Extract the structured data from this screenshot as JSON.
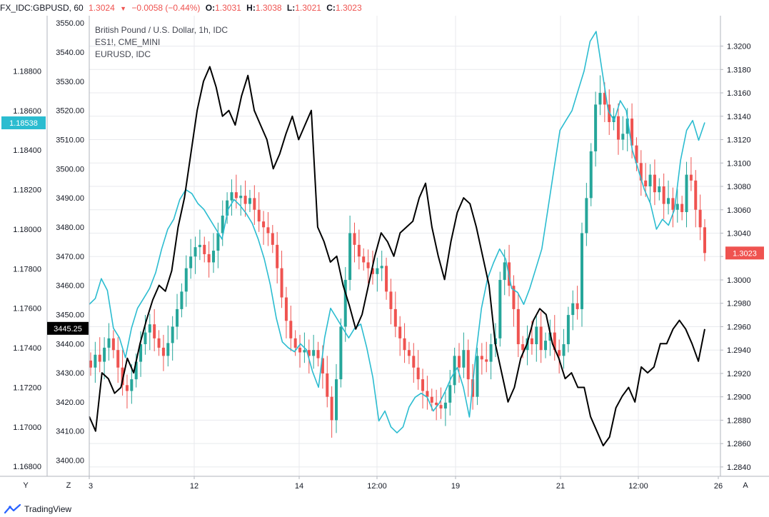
{
  "header": {
    "symbol": "FX_IDC:GBPUSD, 60",
    "last": "1.3024",
    "arrow": "▼",
    "change": "−0.0058 (−0.44%)",
    "o_label": "O:",
    "o_value": "1.3031",
    "h_label": "H:",
    "h_value": "1.3038",
    "l_label": "L:",
    "l_value": "1.3021",
    "c_label": "C:",
    "c_value": "1.3023"
  },
  "legend": [
    "British Pound / U.S. Dollar, 1h, IDC",
    "ES1!, CME_MINI",
    "EURUSD, IDC"
  ],
  "buttons": {
    "left_scale": "Y",
    "mid_scale": "Z",
    "right_scale": "A"
  },
  "footer": {
    "brand": "TradingView"
  },
  "colors": {
    "up": "#26a69a",
    "down": "#ef5350",
    "eurusd": "#2bbcd0",
    "es": "#000000",
    "grid": "#e8eaee"
  },
  "chart_data": {
    "type": "line",
    "x_ticks": [
      "3",
      "12",
      "14",
      "12:00",
      "19",
      "21",
      "12:00",
      "26"
    ],
    "axes": {
      "left_outer": {
        "series": "EURUSD, IDC",
        "ylim": [
          1.1675,
          1.1908
        ],
        "ticks": [
          "1.18800",
          "1.18600",
          "1.18400",
          "1.18200",
          "1.18000",
          "1.17800",
          "1.17600",
          "1.17400",
          "1.17200",
          "1.17000",
          "1.16800"
        ],
        "last_label": "1.18538"
      },
      "left_inner": {
        "series": "ES1!, CME_MINI",
        "ylim": [
          3394.5,
          3552.5
        ],
        "ticks": [
          "3550.00",
          "3540.00",
          "3530.00",
          "3520.00",
          "3510.00",
          "3500.00",
          "3490.00",
          "3480.00",
          "3470.00",
          "3460.00",
          "3450.00",
          "3440.00",
          "3430.00",
          "3420.00",
          "3410.00",
          "3400.00"
        ],
        "last_label": "3445.25"
      },
      "right": {
        "series": "British Pound / U.S. Dollar, 1h, IDC",
        "ylim": [
          1.2832,
          1.3226
        ],
        "ticks": [
          "1.3200",
          "1.3180",
          "1.3160",
          "1.3140",
          "1.3120",
          "1.3100",
          "1.3080",
          "1.3060",
          "1.3040",
          "1.3020",
          "1.3000",
          "1.2980",
          "1.2960",
          "1.2940",
          "1.2920",
          "1.2900",
          "1.2880",
          "1.2860",
          "1.2840"
        ],
        "last_label": "1.3023"
      }
    },
    "series": [
      {
        "name": "British Pound / U.S. Dollar, 1h, IDC",
        "style": "candles",
        "values": [
          1.2925,
          1.2936,
          1.293,
          1.2942,
          1.295,
          1.294,
          1.2925,
          1.291,
          1.2905,
          1.2915,
          1.293,
          1.2945,
          1.2955,
          1.2962,
          1.295,
          1.2942,
          1.2935,
          1.2946,
          1.296,
          1.2975,
          1.299,
          1.301,
          1.302,
          1.3028,
          1.303,
          1.3022,
          1.3015,
          1.3025,
          1.304,
          1.3055,
          1.3068,
          1.3075,
          1.307,
          1.3072,
          1.3065,
          1.307,
          1.306,
          1.305,
          1.3045,
          1.304,
          1.303,
          1.301,
          1.2985,
          1.2965,
          1.295,
          1.2942,
          1.2938,
          1.294,
          1.2935,
          1.294,
          1.2933,
          1.292,
          1.29,
          1.288,
          1.2915,
          1.296,
          1.3,
          1.304,
          1.303,
          1.302,
          1.3015,
          1.301,
          1.3005,
          1.301,
          1.3012,
          1.299,
          1.2975,
          1.296,
          1.295,
          1.294,
          1.2935,
          1.2925,
          1.2915,
          1.2905,
          1.29,
          1.2895,
          1.2893,
          1.289,
          1.2895,
          1.291,
          1.2935,
          1.2925,
          1.294,
          1.2915,
          1.29,
          1.2935,
          1.2932,
          1.293,
          1.2945,
          1.295,
          1.3,
          1.3015,
          1.2995,
          1.2975,
          1.2945,
          1.294,
          1.295,
          1.2945,
          1.296,
          1.294,
          1.2948,
          1.2955,
          1.294,
          1.2935,
          1.2945,
          1.297,
          1.298,
          1.2975,
          1.304,
          1.307,
          1.311,
          1.315,
          1.316,
          1.315,
          1.3135,
          1.314,
          1.312,
          1.3125,
          1.3138,
          1.3115,
          1.31,
          1.3085,
          1.308,
          1.309,
          1.3075,
          1.308,
          1.3065,
          1.307,
          1.306,
          1.3065,
          1.3058,
          1.309,
          1.3085,
          1.306,
          1.3045,
          1.3023
        ]
      },
      {
        "name": "EURUSD, IDC",
        "style": "line",
        "values": [
          1.1762,
          1.1765,
          1.1775,
          1.1769,
          1.175,
          1.1745,
          1.1735,
          1.175,
          1.176,
          1.1765,
          1.177,
          1.1778,
          1.179,
          1.18,
          1.1805,
          1.1815,
          1.182,
          1.1818,
          1.1813,
          1.181,
          1.1805,
          1.18,
          1.1795,
          1.181,
          1.1815,
          1.1812,
          1.1808,
          1.1803,
          1.1795,
          1.1785,
          1.1772,
          1.1755,
          1.1743,
          1.174,
          1.1738,
          1.1742,
          1.1739,
          1.1728,
          1.172,
          1.1745,
          1.176,
          1.1755,
          1.175,
          1.1745,
          1.175,
          1.1752,
          1.174,
          1.1725,
          1.1703,
          1.1708,
          1.17,
          1.1697,
          1.17,
          1.171,
          1.1715,
          1.1717,
          1.1715,
          1.1708,
          1.1712,
          1.1718,
          1.1725,
          1.173,
          1.172,
          1.1705,
          1.1735,
          1.176,
          1.1775,
          1.1783,
          1.179,
          1.1785,
          1.177,
          1.1768,
          1.1762,
          1.177,
          1.178,
          1.179,
          1.181,
          1.183,
          1.185,
          1.1855,
          1.186,
          1.187,
          1.188,
          1.1895,
          1.19,
          1.188,
          1.186,
          1.1855,
          1.1865,
          1.186,
          1.184,
          1.183,
          1.182,
          1.1813,
          1.18,
          1.1805,
          1.1802,
          1.181,
          1.1835,
          1.185,
          1.1855,
          1.1845,
          1.1854
        ]
      },
      {
        "name": "ES1!, CME_MINI",
        "style": "line",
        "values": [
          3415,
          3410,
          3430,
          3428,
          3423,
          3425,
          3435,
          3430,
          3440,
          3448,
          3455,
          3460,
          3458,
          3465,
          3480,
          3490,
          3505,
          3520,
          3530,
          3535,
          3528,
          3518,
          3520,
          3515,
          3525,
          3532,
          3520,
          3515,
          3510,
          3500,
          3505,
          3512,
          3518,
          3510,
          3515,
          3520,
          3480,
          3475,
          3468,
          3470,
          3460,
          3453,
          3445,
          3450,
          3460,
          3470,
          3478,
          3475,
          3470,
          3478,
          3480,
          3482,
          3490,
          3495,
          3480,
          3470,
          3462,
          3475,
          3485,
          3490,
          3488,
          3480,
          3470,
          3460,
          3440,
          3430,
          3420,
          3425,
          3435,
          3440,
          3448,
          3452,
          3450,
          3440,
          3435,
          3428,
          3430,
          3425,
          3425,
          3415,
          3410,
          3405,
          3408,
          3418,
          3422,
          3425,
          3420,
          3432,
          3430,
          3432,
          3440,
          3440,
          3445,
          3448,
          3445,
          3440,
          3434,
          3445
        ]
      }
    ]
  }
}
